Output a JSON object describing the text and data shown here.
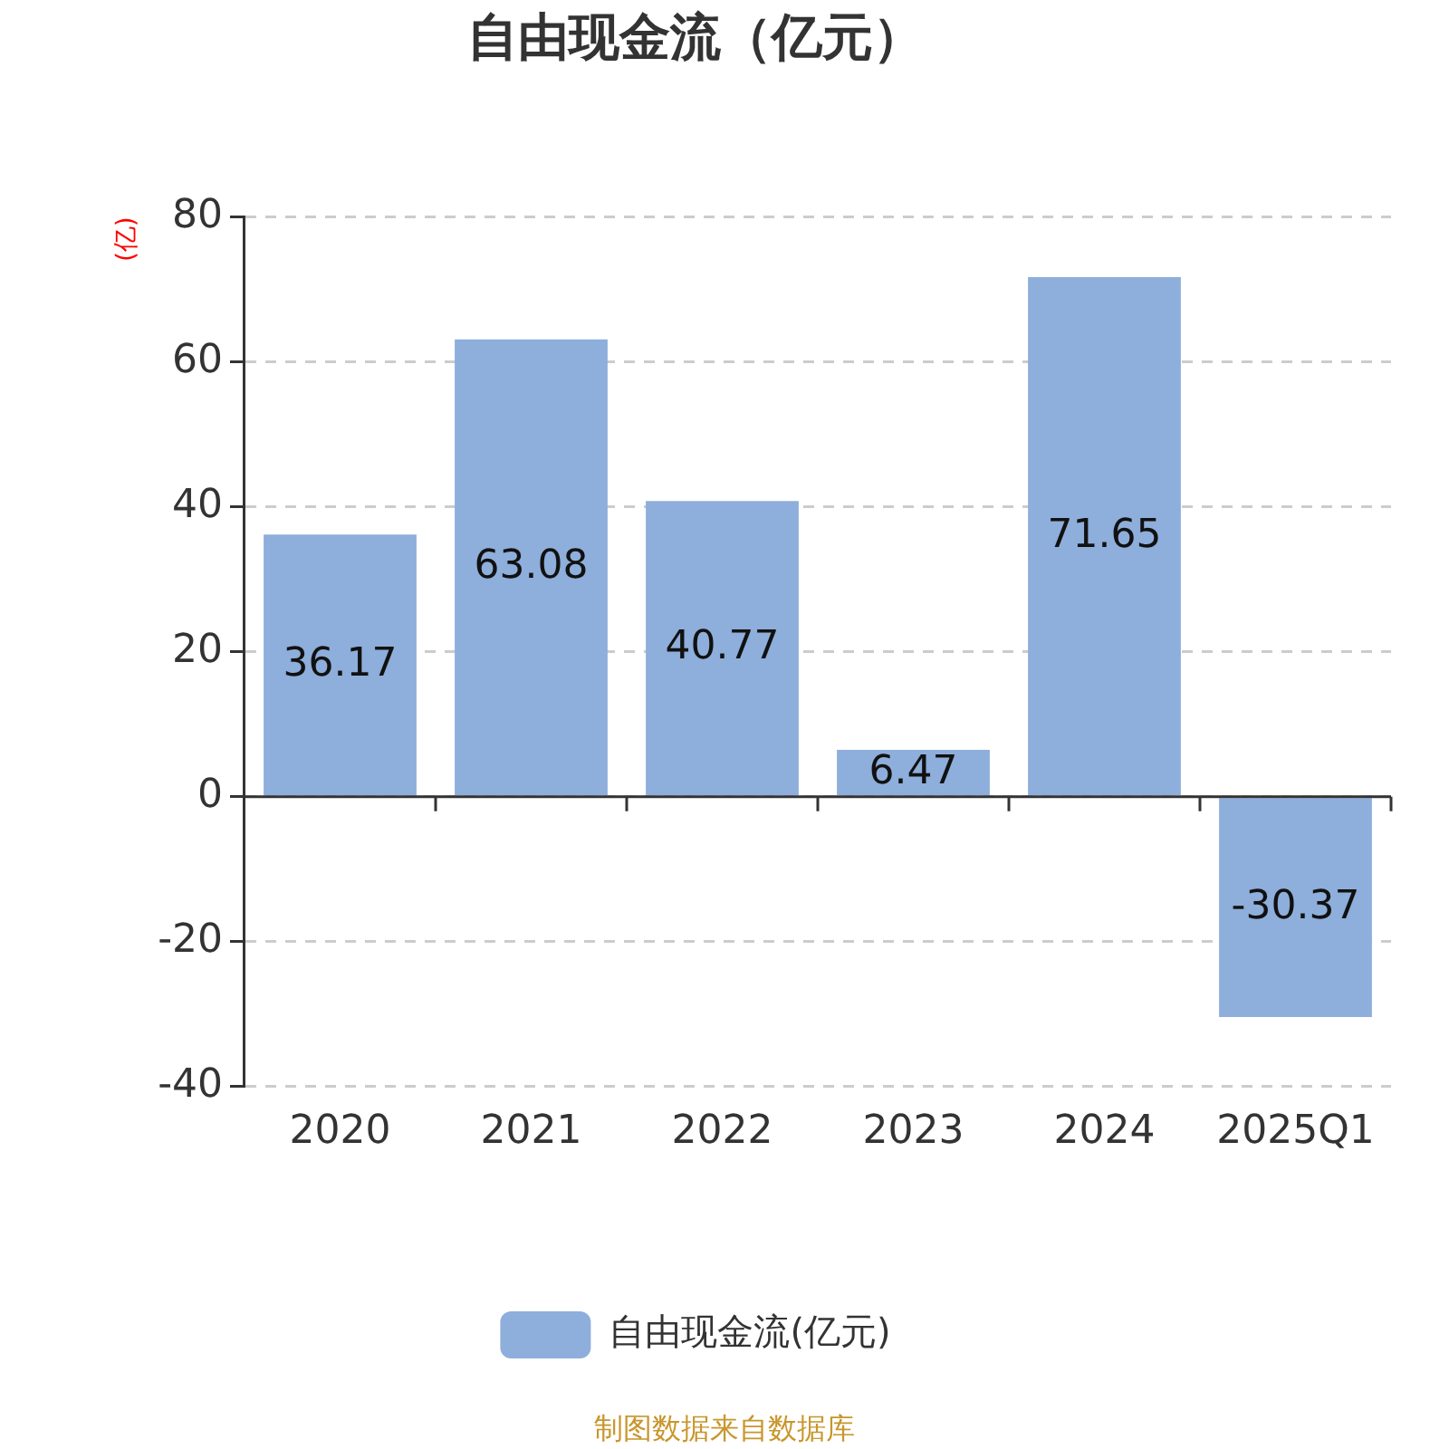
{
  "chart_data": {
    "type": "bar",
    "title": "自由现金流（亿元）",
    "ylabel": "(亿)",
    "categories": [
      "2020",
      "2021",
      "2022",
      "2023",
      "2024",
      "2025Q1"
    ],
    "series": [
      {
        "name": "自由现金流(亿元)",
        "color": "#8eaedb",
        "values": [
          36.17,
          63.08,
          40.77,
          6.47,
          71.65,
          -30.37
        ]
      }
    ],
    "ylim": [
      -40,
      80
    ],
    "yticks": [
      -40,
      -20,
      0,
      20,
      40,
      60,
      80
    ],
    "grid": "y",
    "legend": "bottom",
    "data_labels": true,
    "annotations": [
      "制图数据来自数据库"
    ]
  }
}
